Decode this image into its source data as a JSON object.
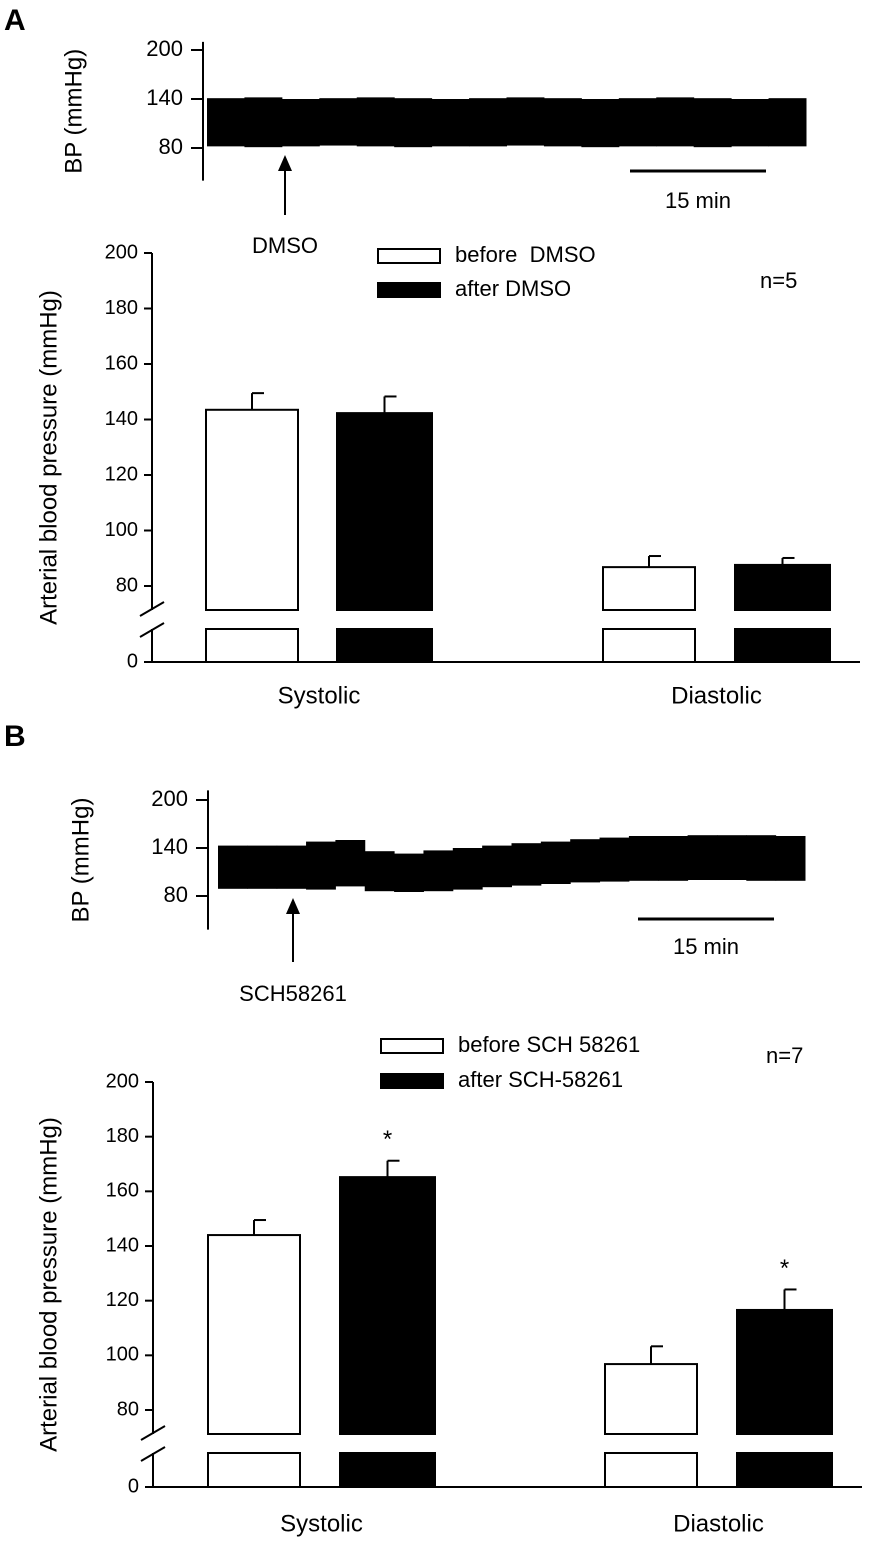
{
  "chart_data": [
    {
      "type": "trace",
      "panel_label": "A",
      "ylabel": "BP (mmHg)",
      "ylim": [
        40,
        210
      ],
      "yticks": [
        80,
        140,
        200
      ],
      "upper": [
        141,
        142,
        140,
        141,
        142,
        141,
        140,
        141,
        142,
        141,
        140,
        141,
        142,
        141,
        140,
        141
      ],
      "lower": [
        82,
        81,
        82,
        83,
        82,
        81,
        82,
        82,
        83,
        82,
        81,
        82,
        82,
        81,
        82,
        82
      ],
      "annotation": "DMSO",
      "scale_bar_label": "15 min"
    },
    {
      "type": "bar",
      "ylabel": "Arterial blood pressure (mmHg)",
      "categories": [
        "Systolic",
        "Diastolic"
      ],
      "series": [
        {
          "name": "before  DMSO",
          "color": "#ffffff",
          "values": [
            143.5,
            86.8
          ],
          "errors": [
            6,
            4
          ]
        },
        {
          "name": "after DMSO",
          "color": "#000000",
          "values": [
            142.3,
            87.6
          ],
          "errors": [
            6,
            2.5
          ]
        }
      ],
      "ylim": [
        0,
        200
      ],
      "yticks": [
        0,
        80,
        100,
        120,
        140,
        160,
        180,
        200
      ],
      "axis_break": true,
      "annotation": "n=5"
    },
    {
      "type": "trace",
      "panel_label": "B",
      "ylabel": "BP (mmHg)",
      "ylim": [
        38,
        212
      ],
      "yticks": [
        80,
        140,
        200
      ],
      "upper": [
        143,
        143,
        143,
        148,
        150,
        136,
        133,
        137,
        140,
        143,
        146,
        148,
        151,
        153,
        155,
        155,
        156,
        156,
        156,
        155
      ],
      "lower": [
        89,
        89,
        89,
        88,
        92,
        86,
        85,
        86,
        88,
        91,
        93,
        95,
        97,
        98,
        99,
        99,
        100,
        100,
        99,
        99
      ],
      "annotation": "SCH58261",
      "scale_bar_label": "15 min"
    },
    {
      "type": "bar",
      "ylabel": "Arterial blood pressure (mmHg)",
      "categories": [
        "Systolic",
        "Diastolic"
      ],
      "series": [
        {
          "name": "before SCH 58261",
          "color": "#ffffff",
          "values": [
            144,
            96.8
          ],
          "errors": [
            5.5,
            6.5
          ],
          "markers": [
            null,
            null
          ]
        },
        {
          "name": "after SCH-58261",
          "color": "#000000",
          "values": [
            165.2,
            116.6
          ],
          "errors": [
            6,
            7.5
          ],
          "markers": [
            "*",
            "*"
          ]
        }
      ],
      "ylim": [
        0,
        200
      ],
      "yticks": [
        0,
        80,
        100,
        120,
        140,
        160,
        180,
        200
      ],
      "axis_break": true,
      "annotation": "n=7"
    }
  ]
}
